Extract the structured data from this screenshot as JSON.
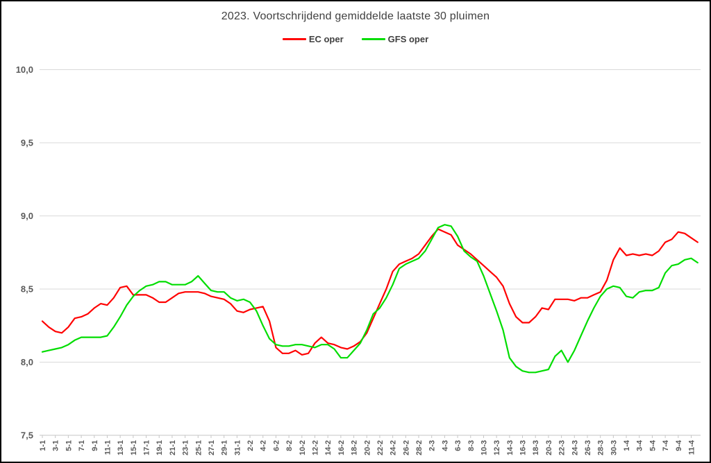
{
  "chart_data": {
    "type": "line",
    "title": "2023. Voortschrijdend gemiddelde laatste 30 pluimen",
    "legend_position": "top",
    "grid": "horizontal",
    "ylim": [
      7.5,
      10.0
    ],
    "y_ticks": [
      {
        "value": 7.5,
        "label": "7,5"
      },
      {
        "value": 8.0,
        "label": "8,0"
      },
      {
        "value": 8.5,
        "label": "8,5"
      },
      {
        "value": 9.0,
        "label": "9,0"
      },
      {
        "value": 9.5,
        "label": "9,5"
      },
      {
        "value": 10.0,
        "label": "10,0"
      }
    ],
    "x_tick_labels": [
      "1-1",
      "3-1",
      "5-1",
      "7-1",
      "9-1",
      "11-1",
      "13-1",
      "15-1",
      "17-1",
      "19-1",
      "21-1",
      "23-1",
      "25-1",
      "27-1",
      "29-1",
      "31-1",
      "2-2",
      "4-2",
      "6-2",
      "8-2",
      "10-2",
      "12-2",
      "14-2",
      "16-2",
      "18-2",
      "20-2",
      "22-2",
      "24-2",
      "26-2",
      "28-2",
      "2-3",
      "4-3",
      "6-3",
      "8-3",
      "10-3",
      "12-3",
      "14-3",
      "16-3",
      "18-3",
      "20-3",
      "22-3",
      "24-3",
      "26-3",
      "28-3",
      "30-3",
      "1-4",
      "3-4",
      "5-4",
      "7-4",
      "9-4",
      "11-4"
    ],
    "points_per_tick": 2,
    "series": [
      {
        "name": "EC oper",
        "color": "#ff0000",
        "values": [
          8.28,
          8.24,
          8.21,
          8.2,
          8.24,
          8.3,
          8.31,
          8.33,
          8.37,
          8.4,
          8.39,
          8.44,
          8.51,
          8.52,
          8.46,
          8.46,
          8.46,
          8.44,
          8.41,
          8.41,
          8.44,
          8.47,
          8.48,
          8.48,
          8.48,
          8.47,
          8.45,
          8.44,
          8.43,
          8.4,
          8.35,
          8.34,
          8.36,
          8.37,
          8.38,
          8.28,
          8.1,
          8.06,
          8.06,
          8.08,
          8.05,
          8.06,
          8.13,
          8.17,
          8.13,
          8.12,
          8.1,
          8.09,
          8.11,
          8.14,
          8.2,
          8.3,
          8.4,
          8.5,
          8.62,
          8.67,
          8.69,
          8.71,
          8.74,
          8.8,
          8.86,
          8.91,
          8.89,
          8.87,
          8.8,
          8.77,
          8.74,
          8.7,
          8.66,
          8.62,
          8.58,
          8.52,
          8.4,
          8.31,
          8.27,
          8.27,
          8.31,
          8.37,
          8.36,
          8.43,
          8.43,
          8.43,
          8.42,
          8.44,
          8.44,
          8.46,
          8.48,
          8.56,
          8.7,
          8.78,
          8.73,
          8.74,
          8.73,
          8.74,
          8.73,
          8.76,
          8.82,
          8.84,
          8.89,
          8.88,
          8.85,
          8.82
        ]
      },
      {
        "name": "GFS oper",
        "color": "#00dd00",
        "values": [
          8.07,
          8.08,
          8.09,
          8.1,
          8.12,
          8.15,
          8.17,
          8.17,
          8.17,
          8.17,
          8.18,
          8.24,
          8.31,
          8.39,
          8.45,
          8.49,
          8.52,
          8.53,
          8.55,
          8.55,
          8.53,
          8.53,
          8.53,
          8.55,
          8.59,
          8.54,
          8.49,
          8.48,
          8.48,
          8.44,
          8.42,
          8.43,
          8.41,
          8.35,
          8.25,
          8.16,
          8.12,
          8.11,
          8.11,
          8.12,
          8.12,
          8.11,
          8.1,
          8.12,
          8.12,
          8.09,
          8.03,
          8.03,
          8.08,
          8.13,
          8.22,
          8.33,
          8.37,
          8.44,
          8.53,
          8.64,
          8.67,
          8.69,
          8.71,
          8.76,
          8.84,
          8.92,
          8.94,
          8.93,
          8.86,
          8.76,
          8.72,
          8.69,
          8.59,
          8.47,
          8.35,
          8.22,
          8.03,
          7.97,
          7.94,
          7.93,
          7.93,
          7.94,
          7.95,
          8.04,
          8.08,
          8.0,
          8.08,
          8.18,
          8.28,
          8.37,
          8.45,
          8.5,
          8.52,
          8.51,
          8.45,
          8.44,
          8.48,
          8.49,
          8.49,
          8.51,
          8.61,
          8.66,
          8.67,
          8.7,
          8.71,
          8.68
        ]
      }
    ]
  },
  "colors": {
    "gridline": "#d9d9d9",
    "axis_line": "#c6c6c6",
    "title_text": "#404040",
    "tick_text": "#595959"
  }
}
